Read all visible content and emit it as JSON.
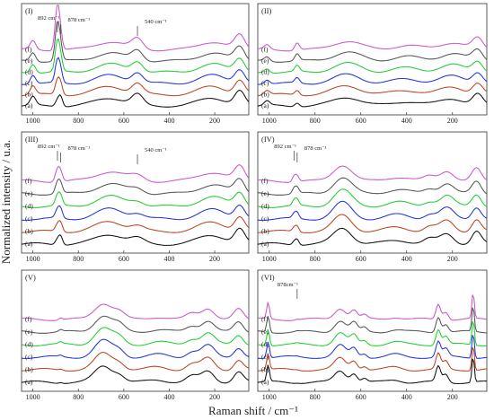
{
  "figure": {
    "xlabel": "Raman shift / cm⁻¹",
    "ylabel": "Normalized intensity / u.a."
  },
  "chart_data": [
    {
      "type": "line",
      "panel": "(I)",
      "xlim": [
        1050,
        50
      ],
      "x_ticks": [
        1000,
        800,
        600,
        400,
        200
      ],
      "series_labels": [
        "(f)",
        "(e)",
        "(d)",
        "(c)",
        "(b)",
        "(a)"
      ],
      "series_colors": [
        "#cc55cc",
        "#555555",
        "#22cc33",
        "#2233dd",
        "#bb4422",
        "#111111"
      ],
      "peaks": [
        {
          "x": 1000,
          "h": 0.6,
          "w": 12
        },
        {
          "x": 892,
          "h": 0.9,
          "w": 10
        },
        {
          "x": 878,
          "h": 0.65,
          "w": 9
        },
        {
          "x": 660,
          "h": 0.55,
          "w": 65
        },
        {
          "x": 540,
          "h": 0.7,
          "w": 24
        },
        {
          "x": 210,
          "h": 0.55,
          "w": 60
        },
        {
          "x": 90,
          "h": 0.95,
          "w": 22
        }
      ],
      "sharp_peak_index": 1,
      "sharp_peak_growth": 3.0,
      "annotations": [
        {
          "text": "892 cm⁻¹",
          "x": 892
        },
        {
          "text": "878 cm⁻¹",
          "x": 878
        },
        {
          "text": "540 cm⁻¹",
          "x": 540
        }
      ]
    },
    {
      "type": "line",
      "panel": "(II)",
      "xlim": [
        1050,
        50
      ],
      "x_ticks": [
        1000,
        800,
        600,
        400,
        200
      ],
      "series_labels": [
        "(f)",
        "(e)",
        "(d)",
        "(c)",
        "(b)",
        "(a)"
      ],
      "series_colors": [
        "#cc55cc",
        "#555555",
        "#22cc33",
        "#2233dd",
        "#bb4422",
        "#111111"
      ],
      "peaks": [
        {
          "x": 1010,
          "h": 0.3,
          "w": 12
        },
        {
          "x": 878,
          "h": 0.6,
          "w": 10
        },
        {
          "x": 660,
          "h": 0.6,
          "w": 60
        },
        {
          "x": 400,
          "h": 0.3,
          "w": 60
        },
        {
          "x": 200,
          "h": 0.5,
          "w": 55
        },
        {
          "x": 90,
          "h": 0.75,
          "w": 22
        }
      ],
      "sharp_peak_index": 1,
      "sharp_peak_growth": 0.4,
      "annotations": []
    },
    {
      "type": "line",
      "panel": "(III)",
      "xlim": [
        1050,
        50
      ],
      "x_ticks": [
        1000,
        800,
        600,
        400,
        200
      ],
      "series_labels": [
        "(f)",
        "(e)",
        "(d)",
        "(c)",
        "(b)",
        "(a)"
      ],
      "series_colors": [
        "#cc55cc",
        "#555555",
        "#22cc33",
        "#2233dd",
        "#bb4422",
        "#111111"
      ],
      "peaks": [
        {
          "x": 892,
          "h": 0.7,
          "w": 10
        },
        {
          "x": 878,
          "h": 0.5,
          "w": 9
        },
        {
          "x": 660,
          "h": 0.6,
          "w": 62
        },
        {
          "x": 540,
          "h": 0.3,
          "w": 30
        },
        {
          "x": 210,
          "h": 0.55,
          "w": 60
        },
        {
          "x": 90,
          "h": 0.85,
          "w": 22
        }
      ],
      "sharp_peak_index": 0,
      "sharp_peak_growth": 0.6,
      "annotations": [
        {
          "text": "892 cm⁻¹",
          "x": 892
        },
        {
          "text": "878 cm⁻¹",
          "x": 878
        },
        {
          "text": "540 cm⁻¹",
          "x": 540
        }
      ]
    },
    {
      "type": "line",
      "panel": "(IV)",
      "xlim": [
        1050,
        50
      ],
      "x_ticks": [
        1000,
        800,
        600,
        400,
        200
      ],
      "series_labels": [
        "(f)",
        "(e)",
        "(d)",
        "(c)",
        "(b)",
        "(a)"
      ],
      "series_colors": [
        "#cc55cc",
        "#555555",
        "#22cc33",
        "#2233dd",
        "#bb4422",
        "#111111"
      ],
      "peaks": [
        {
          "x": 892,
          "h": 0.45,
          "w": 8
        },
        {
          "x": 878,
          "h": 0.35,
          "w": 8
        },
        {
          "x": 680,
          "h": 1.0,
          "w": 40
        },
        {
          "x": 440,
          "h": 0.25,
          "w": 50
        },
        {
          "x": 300,
          "h": 0.3,
          "w": 25
        },
        {
          "x": 225,
          "h": 0.65,
          "w": 30
        },
        {
          "x": 95,
          "h": 0.75,
          "w": 20
        }
      ],
      "sharp_peak_index": 0,
      "sharp_peak_growth": 0.3,
      "annotations": [
        {
          "text": "892 cm⁻¹",
          "x": 892
        },
        {
          "text": "878 cm⁻¹",
          "x": 878
        }
      ]
    },
    {
      "type": "line",
      "panel": "(V)",
      "xlim": [
        1050,
        50
      ],
      "x_ticks": [
        1000,
        800,
        600,
        400,
        200
      ],
      "series_labels": [
        "(f)",
        "(e)",
        "(d)",
        "(c)",
        "(b)",
        "(a)"
      ],
      "series_colors": [
        "#cc55cc",
        "#555555",
        "#22cc33",
        "#2233dd",
        "#bb4422",
        "#111111"
      ],
      "peaks": [
        {
          "x": 878,
          "h": 0.12,
          "w": 8
        },
        {
          "x": 690,
          "h": 1.0,
          "w": 38
        },
        {
          "x": 620,
          "h": 0.4,
          "w": 25
        },
        {
          "x": 450,
          "h": 0.15,
          "w": 40
        },
        {
          "x": 300,
          "h": 0.35,
          "w": 25
        },
        {
          "x": 230,
          "h": 0.7,
          "w": 28
        },
        {
          "x": 95,
          "h": 0.6,
          "w": 20
        }
      ],
      "sharp_peak_index": 0,
      "sharp_peak_growth": 0.6,
      "annotations": []
    },
    {
      "type": "line",
      "panel": "(VI)",
      "xlim": [
        1050,
        50
      ],
      "x_ticks": [
        1000,
        800,
        600,
        400,
        200
      ],
      "series_labels": [
        "(f)",
        "(e)",
        "(d)",
        "(c)",
        "(b)",
        "(a)"
      ],
      "series_colors": [
        "#cc55cc",
        "#555555",
        "#22cc33",
        "#2233dd",
        "#bb4422",
        "#111111"
      ],
      "peaks": [
        {
          "x": 1005,
          "h": 1.0,
          "w": 6
        },
        {
          "x": 878,
          "h": 0.05,
          "w": 8
        },
        {
          "x": 690,
          "h": 0.7,
          "w": 25
        },
        {
          "x": 630,
          "h": 0.55,
          "w": 15
        },
        {
          "x": 585,
          "h": 0.25,
          "w": 12
        },
        {
          "x": 450,
          "h": 0.15,
          "w": 30
        },
        {
          "x": 262,
          "h": 0.95,
          "w": 10
        },
        {
          "x": 230,
          "h": 0.5,
          "w": 12
        },
        {
          "x": 110,
          "h": 1.6,
          "w": 5
        }
      ],
      "sharp_peak_index": 1,
      "sharp_peak_growth": 0.4,
      "annotations": [
        {
          "text": "878cm⁻¹",
          "x": 878
        }
      ]
    }
  ]
}
